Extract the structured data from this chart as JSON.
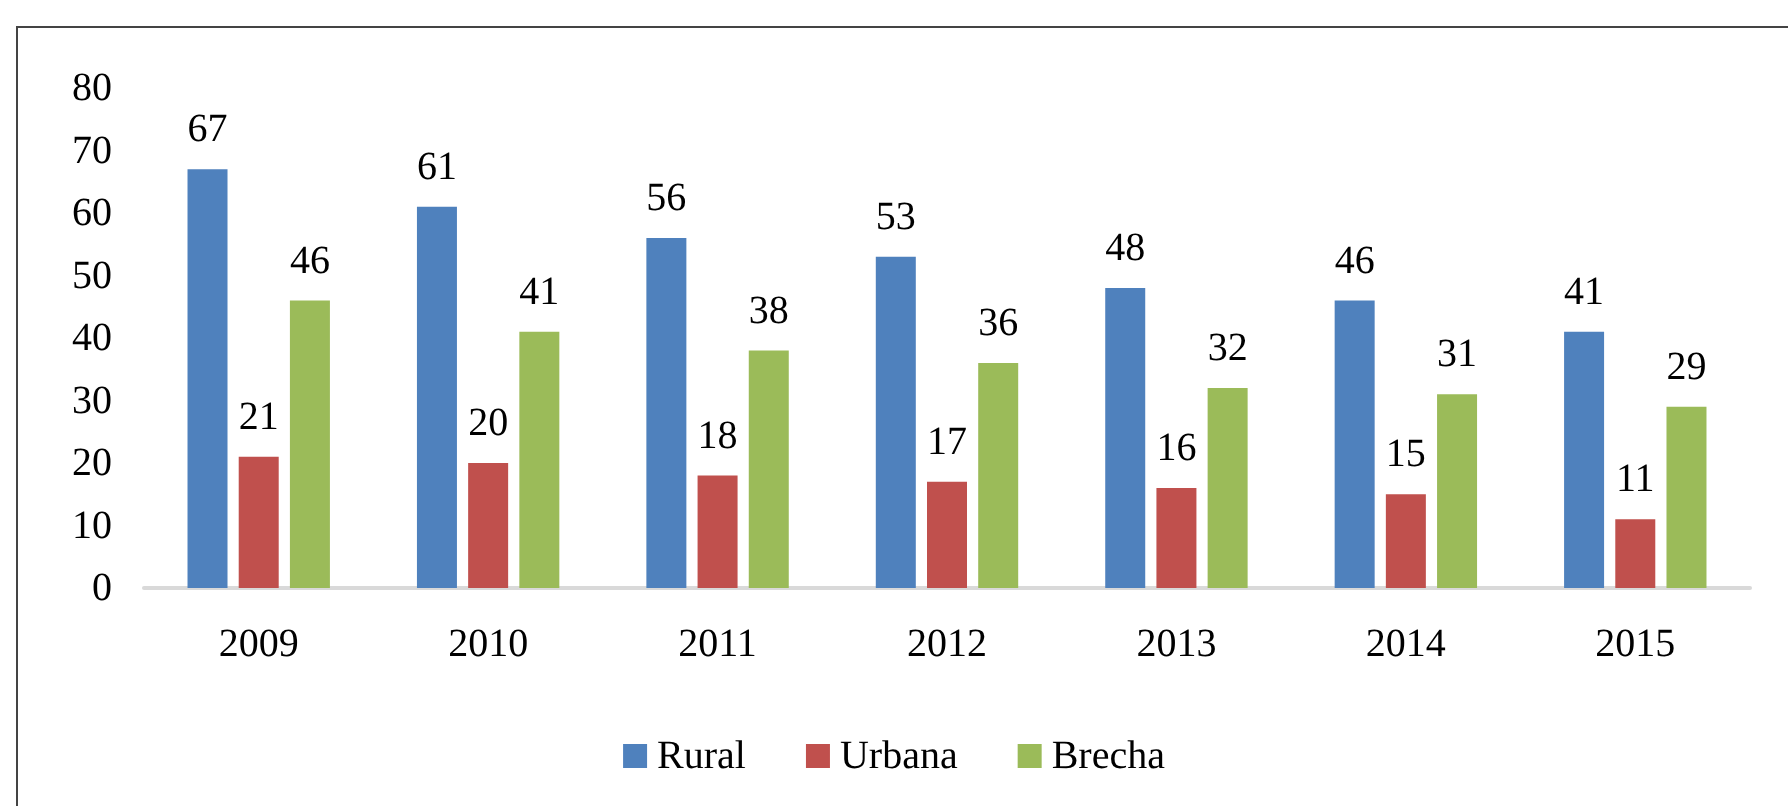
{
  "chart_data": {
    "type": "bar",
    "categories": [
      "2009",
      "2010",
      "2011",
      "2012",
      "2013",
      "2014",
      "2015"
    ],
    "series": [
      {
        "name": "Rural",
        "color": "#4f81bd",
        "values": [
          67,
          61,
          56,
          53,
          48,
          46,
          41
        ]
      },
      {
        "name": "Urbana",
        "color": "#c0504d",
        "values": [
          21,
          20,
          18,
          17,
          16,
          15,
          11
        ]
      },
      {
        "name": "Brecha",
        "color": "#9bbb59",
        "values": [
          46,
          41,
          38,
          36,
          32,
          31,
          29
        ]
      }
    ],
    "ylim": [
      0,
      80
    ],
    "yticks": [
      0,
      10,
      20,
      30,
      40,
      50,
      60,
      70,
      80
    ],
    "grid": false,
    "legend": "bottom",
    "data_labels": true
  }
}
